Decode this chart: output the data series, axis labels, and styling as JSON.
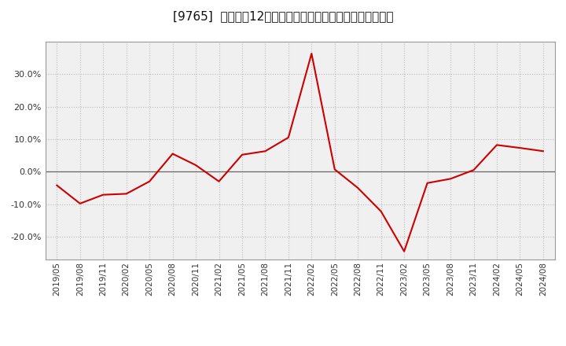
{
  "title": "[9765]  売上高の12か月移動合計の対前年同期増減率の推移",
  "line_color": "#cc0000",
  "background_color": "#ffffff",
  "plot_bg_color": "#f0f0f0",
  "grid_color": "#bbbbbb",
  "ylim": [
    -0.27,
    0.4
  ],
  "yticks": [
    -0.2,
    -0.1,
    0.0,
    0.1,
    0.2,
    0.3
  ],
  "dates": [
    "2019/05",
    "2019/08",
    "2019/11",
    "2020/02",
    "2020/05",
    "2020/08",
    "2020/11",
    "2021/02",
    "2021/05",
    "2021/08",
    "2021/11",
    "2022/02",
    "2022/05",
    "2022/08",
    "2022/11",
    "2023/02",
    "2023/05",
    "2023/08",
    "2023/11",
    "2024/02",
    "2024/05",
    "2024/08"
  ],
  "values": [
    -0.042,
    -0.098,
    -0.071,
    -0.068,
    -0.03,
    0.055,
    0.02,
    -0.03,
    0.052,
    0.063,
    0.105,
    0.363,
    0.007,
    -0.05,
    -0.122,
    -0.245,
    -0.035,
    -0.022,
    0.005,
    0.082,
    0.073,
    0.063
  ],
  "title_fontsize": 11,
  "tick_fontsize": 7.5
}
